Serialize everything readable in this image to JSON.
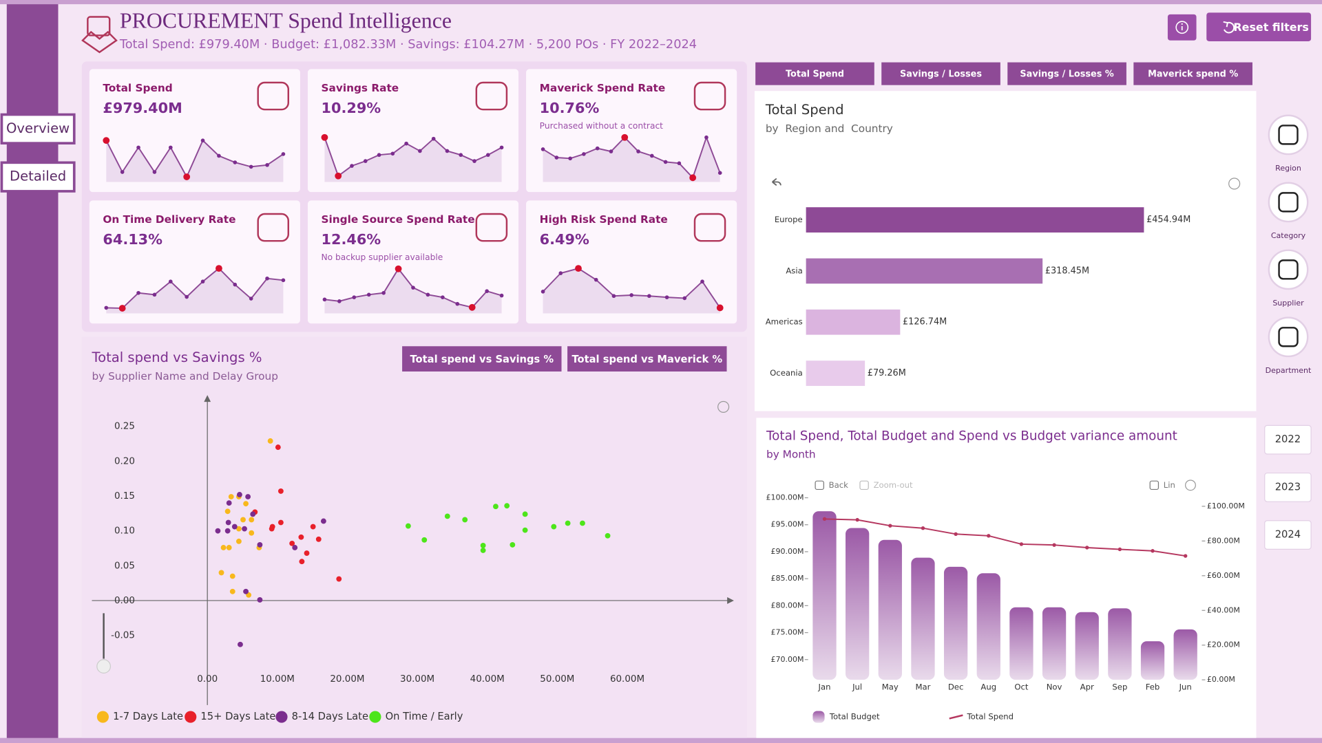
{
  "header": {
    "title": "PROCUREMENT Spend Intelligence",
    "summary": "Total Spend: £979.40M  ·  Budget: £1,082.33M  ·  Savings: £104.27M  ·  5,200 POs  ·  FY 2022–2024"
  },
  "buttons": {
    "reset": "Reset filters"
  },
  "nav": [
    "Overview",
    "Detailed"
  ],
  "kpis": [
    {
      "title": "Total Spend",
      "value": "£979.40M",
      "sparkline": {
        "values": [
          87,
          15,
          71,
          15,
          71,
          4,
          87,
          52,
          37,
          27,
          31,
          56
        ],
        "ylim": [
          0,
          100
        ]
      }
    },
    {
      "title": "Savings Rate",
      "value": "10.29%",
      "sparkline": {
        "values": [
          94,
          6,
          29,
          40,
          54,
          57,
          80,
          63,
          91,
          63,
          54,
          40,
          54,
          71
        ],
        "ylim": [
          0,
          100
        ]
      }
    },
    {
      "title": "Maverick Spend Rate",
      "value": "10.76%",
      "note": "Purchased without a contract",
      "sparkline": {
        "values": [
          67,
          48,
          46,
          56,
          69,
          62,
          94,
          62,
          52,
          38,
          35,
          2,
          94,
          13
        ],
        "ylim": [
          0,
          100
        ]
      }
    },
    {
      "title": "On Time Delivery Rate",
      "value": "64.13%",
      "sparkline": {
        "values": [
          5,
          4,
          39,
          35,
          65,
          30,
          65,
          95,
          58,
          26,
          72,
          68
        ],
        "ylim": [
          0,
          100
        ]
      }
    },
    {
      "title": "Single Source Spend Rate",
      "value": "12.46%",
      "note": "No backup supplier available",
      "sparkline": {
        "values": [
          24,
          20,
          29,
          35,
          39,
          94,
          51,
          35,
          29,
          14,
          6,
          43,
          33
        ],
        "ylim": [
          0,
          100
        ]
      }
    },
    {
      "title": "High Risk Spend Rate",
      "value": "6.49%",
      "sparkline": {
        "values": [
          42,
          84,
          95,
          69,
          32,
          34,
          32,
          29,
          27,
          65,
          5
        ],
        "ylim": [
          0,
          100
        ]
      }
    }
  ],
  "tabs": [
    "Total Spend",
    "Savings / Losses",
    "Savings / Losses %",
    "Maverick spend %"
  ],
  "side_filters": [
    "Region",
    "Category",
    "Supplier",
    "Department"
  ],
  "years": [
    "2022",
    "2023",
    "2024"
  ],
  "chart_data": [
    {
      "type": "bar",
      "orientation": "horizontal",
      "title": "Total Spend",
      "subtitle": "by  Region and  Country",
      "categories": [
        "Europe",
        "Asia",
        "Americas",
        "Oceania"
      ],
      "values": [
        454.94,
        318.45,
        126.74,
        79.26
      ],
      "value_labels": [
        "£454.94M",
        "£318.45M",
        "£126.74M",
        "£79.26M"
      ],
      "colors": [
        "#8e4a96",
        "#a86fb2",
        "#dbb4df",
        "#e8cbeb"
      ],
      "xlim": [
        0,
        580
      ]
    },
    {
      "type": "scatter",
      "title": "Total spend vs Savings %",
      "subtitle": "by Supplier Name and Delay Group",
      "buttons": [
        "Total spend vs Savings %",
        "Total spend vs Maverick %"
      ],
      "xlim": [
        -16.5,
        75
      ],
      "ylim": [
        -0.15,
        0.29
      ],
      "xticks": [
        {
          "value": 0,
          "label": "0.00"
        },
        {
          "value": 10,
          "label": "10.00M"
        },
        {
          "value": 20,
          "label": "20.00M"
        },
        {
          "value": 30,
          "label": "30.00M"
        },
        {
          "value": 40,
          "label": "40.00M"
        },
        {
          "value": 50,
          "label": "50.00M"
        },
        {
          "value": 60,
          "label": "60.00M"
        }
      ],
      "yticks": [
        0.25,
        {
          "value": 0.2,
          "label": "0.20"
        },
        0.15,
        {
          "value": 0.1,
          "label": "0.10"
        },
        0.05,
        {
          "value": 0,
          "label": "0.00"
        },
        -0.05
      ],
      "legend": "bottom",
      "series": [
        {
          "name": "1-7 Days Late",
          "color": "#f8b81c",
          "x": [
            9.0,
            3.4,
            4.5,
            5.5,
            2.9,
            6.3,
            5.1,
            4.5,
            6.3,
            2.3,
            3.1,
            4.5,
            7.4,
            2.0,
            3.6,
            3.6,
            5.9
          ],
          "values": [
            0.229,
            0.149,
            0.149,
            0.139,
            0.128,
            0.116,
            0.116,
            0.103,
            0.097,
            0.076,
            0.076,
            0.085,
            0.076,
            0.04,
            0.035,
            0.013,
            0.008
          ]
        },
        {
          "name": "15+ Days Late",
          "color": "#e8202a",
          "x": [
            10.1,
            10.5,
            6.8,
            9.3,
            9.2,
            10.5,
            12.1,
            13.4,
            15.1,
            14.2,
            13.5,
            15.9,
            18.8
          ],
          "values": [
            0.22,
            0.157,
            0.127,
            0.106,
            0.103,
            0.112,
            0.082,
            0.091,
            0.106,
            0.068,
            0.056,
            0.088,
            0.031
          ]
        },
        {
          "name": "8-14 Days Late",
          "color": "#7b2d8e",
          "x": [
            4.6,
            3.1,
            5.8,
            3.0,
            3.9,
            1.5,
            6.5,
            5.3,
            2.9,
            7.5,
            12.5,
            16.6,
            5.5,
            7.5,
            4.7
          ],
          "values": [
            0.152,
            0.14,
            0.149,
            0.112,
            0.106,
            0.1,
            0.124,
            0.103,
            0.1,
            0.08,
            0.076,
            0.114,
            0.013,
            0.001,
            -0.063
          ]
        },
        {
          "name": "On Time / Early",
          "color": "#4de51a",
          "x": [
            28.7,
            31.0,
            34.3,
            36.8,
            41.2,
            42.8,
            45.4,
            45.4,
            39.4,
            39.4,
            43.6,
            49.5,
            51.5,
            53.6,
            57.2
          ],
          "values": [
            0.107,
            0.087,
            0.121,
            0.116,
            0.135,
            0.136,
            0.124,
            0.101,
            0.079,
            0.072,
            0.08,
            0.106,
            0.111,
            0.111,
            0.093
          ]
        }
      ]
    },
    {
      "type": "combo",
      "title": "Total Spend, Total Budget and Spend vs Budget variance amount",
      "subtitle": "by Month",
      "toolbar": [
        "Back",
        "Zoom-out",
        "Lin"
      ],
      "categories": [
        "Jan",
        "Jul",
        "May",
        "Mar",
        "Dec",
        "Aug",
        "Oct",
        "Nov",
        "Apr",
        "Sep",
        "Feb",
        "Jun"
      ],
      "ylim": [
        66.25,
        101.7
      ],
      "yticks": [
        {
          "value": 70,
          "label": "£70.00M"
        },
        {
          "value": 75,
          "label": "£75.00M"
        },
        {
          "value": 80,
          "label": "£80.00M"
        },
        {
          "value": 85,
          "label": "£85.00M"
        },
        {
          "value": 90,
          "label": "£90.00M"
        },
        {
          "value": 95,
          "label": "£95.00M"
        },
        {
          "value": 100,
          "label": "£100.00M"
        }
      ],
      "y2lim": [
        0,
        110.2
      ],
      "y2ticks": [
        {
          "value": 0,
          "label": "£0.00M"
        },
        {
          "value": 20,
          "label": "£20.00M"
        },
        {
          "value": 40,
          "label": "£40.00M"
        },
        {
          "value": 60,
          "label": "£60.00M"
        },
        {
          "value": 80,
          "label": "£80.00M"
        },
        {
          "value": 100,
          "label": "£100.00M"
        }
      ],
      "legend": "bottom",
      "series": [
        {
          "name": "Total Budget",
          "type": "bar",
          "color": "#9b59a6",
          "values": [
            97.5,
            94.4,
            92.2,
            88.9,
            87.2,
            86.0,
            79.7,
            79.7,
            78.8,
            79.5,
            73.4,
            75.6
          ]
        },
        {
          "name": "Total Spend",
          "type": "line",
          "axis": "y2",
          "color": "#b5375f",
          "values": [
            92.7,
            92.2,
            88.8,
            87.4,
            84.0,
            83.0,
            78.2,
            77.7,
            76.2,
            75.2,
            74.3,
            71.4
          ]
        }
      ]
    }
  ]
}
